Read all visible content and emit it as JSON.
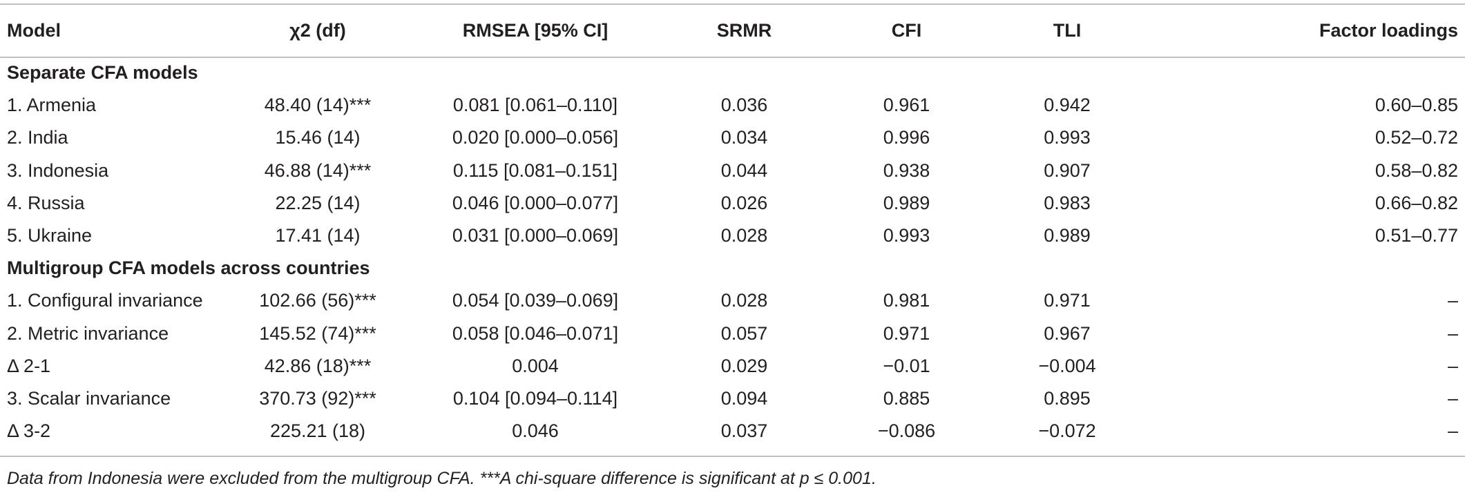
{
  "table": {
    "headers": {
      "model": "Model",
      "chi2": "χ2 (df)",
      "rmsea": "RMSEA [95% CI]",
      "srmr": "SRMR",
      "cfi": "CFI",
      "tli": "TLI",
      "loadings": "Factor loadings"
    },
    "sections": [
      {
        "title": "Separate CFA models",
        "rows": [
          {
            "model": "1. Armenia",
            "chi2": "48.40 (14)***",
            "rmsea": "0.081 [0.061–0.110]",
            "srmr": "0.036",
            "cfi": "0.961",
            "tli": "0.942",
            "loadings": "0.60–0.85"
          },
          {
            "model": "2. India",
            "chi2": "15.46 (14)",
            "rmsea": "0.020 [0.000–0.056]",
            "srmr": "0.034",
            "cfi": "0.996",
            "tli": "0.993",
            "loadings": "0.52–0.72"
          },
          {
            "model": "3. Indonesia",
            "chi2": "46.88 (14)***",
            "rmsea": "0.115 [0.081–0.151]",
            "srmr": "0.044",
            "cfi": "0.938",
            "tli": "0.907",
            "loadings": "0.58–0.82"
          },
          {
            "model": "4. Russia",
            "chi2": "22.25 (14)",
            "rmsea": "0.046 [0.000–0.077]",
            "srmr": "0.026",
            "cfi": "0.989",
            "tli": "0.983",
            "loadings": "0.66–0.82"
          },
          {
            "model": "5. Ukraine",
            "chi2": "17.41 (14)",
            "rmsea": "0.031 [0.000–0.069]",
            "srmr": "0.028",
            "cfi": "0.993",
            "tli": "0.989",
            "loadings": "0.51–0.77"
          }
        ]
      },
      {
        "title": "Multigroup CFA models across countries",
        "rows": [
          {
            "model": "1. Configural invariance",
            "chi2": "102.66 (56)***",
            "rmsea": "0.054 [0.039–0.069]",
            "srmr": "0.028",
            "cfi": "0.981",
            "tli": "0.971",
            "loadings": "–"
          },
          {
            "model": "2. Metric invariance",
            "chi2": "145.52 (74)***",
            "rmsea": "0.058 [0.046–0.071]",
            "srmr": "0.057",
            "cfi": "0.971",
            "tli": "0.967",
            "loadings": "–"
          },
          {
            "model": "Δ 2-1",
            "chi2": "42.86 (18)***",
            "rmsea": "0.004",
            "srmr": "0.029",
            "cfi": "−0.01",
            "tli": "−0.004",
            "loadings": "–"
          },
          {
            "model": "3. Scalar invariance",
            "chi2": "370.73 (92)***",
            "rmsea": "0.104 [0.094–0.114]",
            "srmr": "0.094",
            "cfi": "0.885",
            "tli": "0.895",
            "loadings": "–"
          },
          {
            "model": "Δ 3-2",
            "chi2": "225.21 (18)",
            "rmsea": "0.046",
            "srmr": "0.037",
            "cfi": "−0.086",
            "tli": "−0.072",
            "loadings": "–"
          }
        ]
      }
    ]
  },
  "footnote": "Data from Indonesia were excluded from the multigroup CFA. ***A chi-square difference is significant at p ≤ 0.001."
}
